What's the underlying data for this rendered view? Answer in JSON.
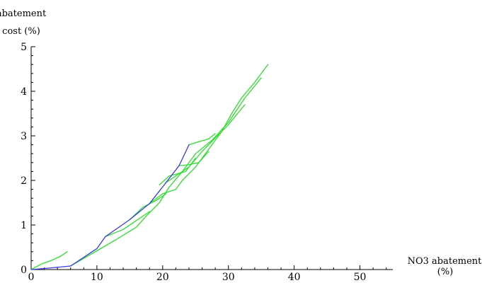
{
  "chart_data": {
    "type": "line",
    "title": "",
    "ylabel_lines": [
      "abatement",
      "cost (%)"
    ],
    "xlabel_lines": [
      "NO3 abatement",
      "(%)"
    ],
    "xlim": [
      0,
      55
    ],
    "ylim": [
      0,
      5
    ],
    "xticks": [
      0,
      10,
      20,
      30,
      40,
      50
    ],
    "yticks": [
      0,
      1,
      2,
      3,
      4,
      5
    ],
    "grid": false,
    "legend": "none",
    "colors": {
      "blue": "#3a3adf",
      "green": "#2fdc2f",
      "axis": "#000000"
    },
    "series": [
      {
        "color": "blue",
        "points": [
          [
            0,
            0
          ],
          [
            2.5,
            0.03
          ],
          [
            6,
            0.08
          ],
          [
            10,
            0.47
          ],
          [
            11.3,
            0.74
          ],
          [
            15,
            1.12
          ],
          [
            18,
            1.48
          ],
          [
            20.5,
            1.95
          ],
          [
            22.5,
            2.33
          ],
          [
            24,
            2.8
          ]
        ]
      },
      {
        "color": "green",
        "points": [
          [
            0,
            0
          ],
          [
            1.5,
            0.12
          ],
          [
            3,
            0.2
          ],
          [
            4.5,
            0.3
          ],
          [
            5.5,
            0.4
          ]
        ]
      },
      {
        "color": "green",
        "points": [
          [
            6,
            0.08
          ],
          [
            10,
            0.42
          ],
          [
            13,
            0.68
          ],
          [
            16,
            0.95
          ],
          [
            17.5,
            1.2
          ],
          [
            19.5,
            1.5
          ],
          [
            21,
            1.85
          ],
          [
            23,
            2.2
          ],
          [
            25,
            2.6
          ],
          [
            27.5,
            2.9
          ],
          [
            30,
            3.3
          ],
          [
            32.5,
            3.85
          ],
          [
            35,
            4.3
          ]
        ]
      },
      {
        "color": "green",
        "points": [
          [
            11.3,
            0.74
          ],
          [
            14,
            0.9
          ],
          [
            16,
            1.1
          ],
          [
            18,
            1.3
          ]
        ]
      },
      {
        "color": "green",
        "points": [
          [
            15,
            1.12
          ],
          [
            17,
            1.4
          ],
          [
            19,
            1.55
          ],
          [
            20.5,
            1.7
          ]
        ]
      },
      {
        "color": "green",
        "points": [
          [
            18,
            1.48
          ],
          [
            20,
            1.7
          ],
          [
            22,
            1.8
          ],
          [
            23,
            2.0
          ],
          [
            25,
            2.3
          ],
          [
            27,
            2.7
          ],
          [
            29,
            3.1
          ],
          [
            30.5,
            3.5
          ],
          [
            32,
            3.85
          ],
          [
            34,
            4.2
          ],
          [
            36,
            4.6
          ]
        ]
      },
      {
        "color": "green",
        "points": [
          [
            20.5,
            1.95
          ],
          [
            22,
            2.1
          ],
          [
            24,
            2.3
          ],
          [
            26,
            2.65
          ],
          [
            28,
            2.95
          ],
          [
            30,
            3.25
          ],
          [
            32.5,
            3.7
          ]
        ]
      },
      {
        "color": "green",
        "points": [
          [
            22.5,
            2.33
          ],
          [
            24,
            2.35
          ],
          [
            25.5,
            2.4
          ],
          [
            27,
            2.65
          ]
        ]
      },
      {
        "color": "green",
        "points": [
          [
            24,
            2.8
          ],
          [
            25.5,
            2.87
          ],
          [
            27,
            2.93
          ],
          [
            28,
            3.05
          ]
        ]
      },
      {
        "color": "green",
        "points": [
          [
            19.5,
            1.9
          ],
          [
            21,
            2.1
          ],
          [
            23.5,
            2.2
          ],
          [
            25,
            2.5
          ]
        ]
      }
    ]
  }
}
